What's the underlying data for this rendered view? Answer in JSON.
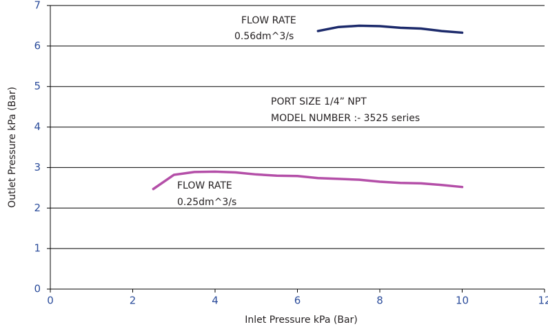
{
  "chart_data": {
    "type": "line",
    "x_label": "Inlet Pressure kPa (Bar)",
    "y_label": "Outlet Pressure kPa (Bar)",
    "xlim": [
      0,
      12
    ],
    "xticks": [
      0,
      2,
      4,
      6,
      8,
      10,
      12
    ],
    "ylim": [
      0,
      7
    ],
    "yticks": [
      0,
      1,
      2,
      3,
      4,
      5,
      6,
      7
    ],
    "grid": true,
    "annotations": [
      "FLOW RATE",
      "0.56dm^3/s",
      "PORT SIZE 1/4” NPT",
      "MODEL NUMBER :- 3525 series",
      "FLOW RATE",
      "0.25dm^3/s"
    ],
    "series": [
      {
        "color": "#1c2a6b",
        "x": [
          6.5,
          7,
          7.5,
          8,
          8.5,
          9,
          9.5,
          10
        ],
        "values": [
          6.37,
          6.47,
          6.5,
          6.49,
          6.45,
          6.43,
          6.37,
          6.33
        ]
      },
      {
        "color": "#b44fa8",
        "x": [
          2.5,
          3,
          3.5,
          4,
          4.5,
          5,
          5.5,
          6,
          6.5,
          7,
          7.5,
          8,
          8.5,
          9,
          9.5,
          10
        ],
        "values": [
          2.47,
          2.82,
          2.89,
          2.9,
          2.88,
          2.83,
          2.8,
          2.79,
          2.74,
          2.72,
          2.7,
          2.65,
          2.62,
          2.61,
          2.57,
          2.52
        ]
      }
    ]
  }
}
